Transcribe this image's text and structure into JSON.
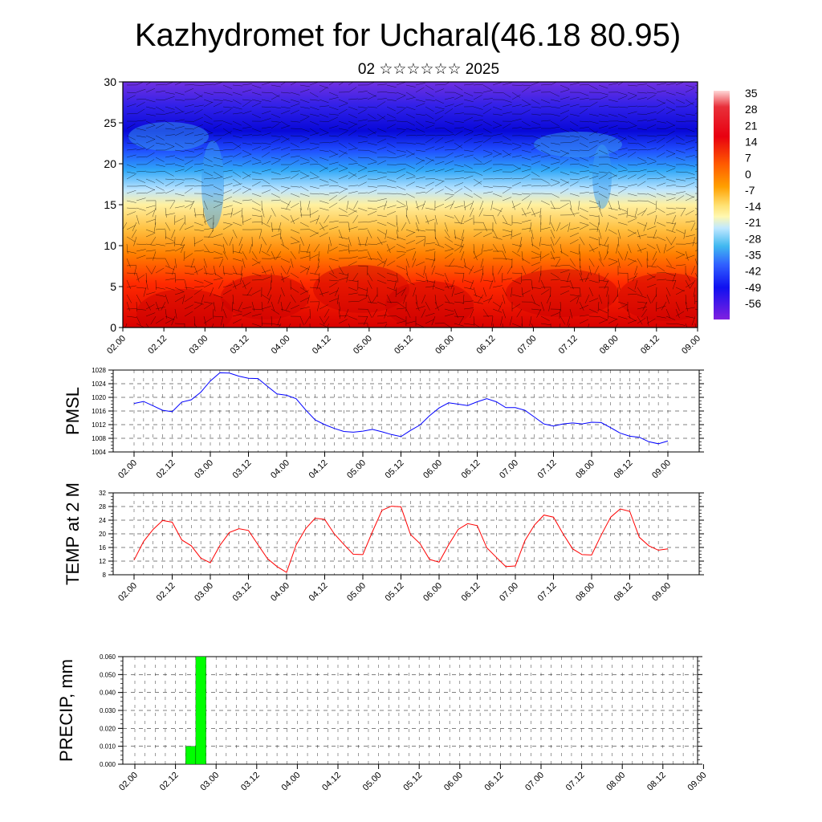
{
  "title": "Kazhydromet for Ucharal(46.18 80.95)",
  "subtitle": "02 ☆☆☆☆☆☆ 2025",
  "time_labels": [
    "02.00",
    "02.12",
    "03.00",
    "03.12",
    "04.00",
    "04.12",
    "05.00",
    "05.12",
    "06.00",
    "06.12",
    "07.00",
    "07.12",
    "08.00",
    "08.12",
    "09.00"
  ],
  "chart_data": [
    {
      "type": "heatmap",
      "ylim": [
        0,
        30
      ],
      "yticks": [
        0,
        5,
        10,
        15,
        20,
        25,
        30
      ],
      "colorbar": {
        "labels": [
          "35",
          "28",
          "21",
          "14",
          "7",
          "0",
          "-7",
          "-14",
          "-21",
          "-28",
          "-35",
          "-42",
          "-49",
          "-56"
        ]
      }
    },
    {
      "type": "line",
      "ylabel": "PMSL",
      "ylim": [
        1004,
        1028
      ],
      "yticks": [
        1004,
        1008,
        1012,
        1016,
        1020,
        1024,
        1028
      ],
      "color": "#0000ff",
      "values": [
        1018.2,
        1018.8,
        1017.5,
        1016.2,
        1015.8,
        1018.6,
        1019.3,
        1021.5,
        1024.8,
        1027.2,
        1027.1,
        1026.2,
        1025.6,
        1025.5,
        1023.2,
        1021.0,
        1020.6,
        1019.6,
        1016.3,
        1013.4,
        1012.0,
        1010.9,
        1010.0,
        1009.8,
        1010.1,
        1010.6,
        1009.9,
        1009.1,
        1008.5,
        1010.3,
        1011.9,
        1014.6,
        1016.9,
        1018.4,
        1018.0,
        1017.6,
        1018.7,
        1019.6,
        1018.7,
        1017.0,
        1017.0,
        1016.2,
        1014.2,
        1012.2,
        1011.6,
        1012.2,
        1012.5,
        1012.2,
        1012.7,
        1012.6,
        1011.1,
        1009.5,
        1008.6,
        1008.3,
        1007.0,
        1006.4,
        1007.2
      ],
      "x_range": [
        0,
        7
      ]
    },
    {
      "type": "line",
      "ylabel": "TEMP at 2 M",
      "ylim": [
        8,
        32
      ],
      "yticks": [
        8,
        12,
        16,
        20,
        24,
        28,
        32
      ],
      "color": "#ff0000",
      "values": [
        12.3,
        17.8,
        21.3,
        23.9,
        23.4,
        18.2,
        16.5,
        12.9,
        11.5,
        16.6,
        20.4,
        21.5,
        21.0,
        16.8,
        12.7,
        10.4,
        8.7,
        16.7,
        21.5,
        24.6,
        24.2,
        20.0,
        16.9,
        14.0,
        13.9,
        20.6,
        26.9,
        28.1,
        27.9,
        19.8,
        17.1,
        12.5,
        11.7,
        16.8,
        21.3,
        23.0,
        22.4,
        15.9,
        13.1,
        10.4,
        10.6,
        18.0,
        22.6,
        25.5,
        24.9,
        20.0,
        15.6,
        13.9,
        13.8,
        19.6,
        24.9,
        27.3,
        26.6,
        19.0,
        16.5,
        15.2,
        15.6
      ],
      "x_range": [
        0,
        7
      ]
    },
    {
      "type": "bar",
      "ylabel": "PRECIP, mm",
      "ylim": [
        0,
        0.06
      ],
      "yticks": [
        "0.000",
        "0.010",
        "0.020",
        "0.030",
        "0.040",
        "0.050",
        "0.060"
      ],
      "color": "#00ff00",
      "bars": [
        {
          "start": 0.625,
          "end": 0.75,
          "value": 0.01
        },
        {
          "start": 0.75,
          "end": 0.875,
          "value": 0.06
        }
      ],
      "x_range": [
        0,
        7
      ]
    }
  ]
}
